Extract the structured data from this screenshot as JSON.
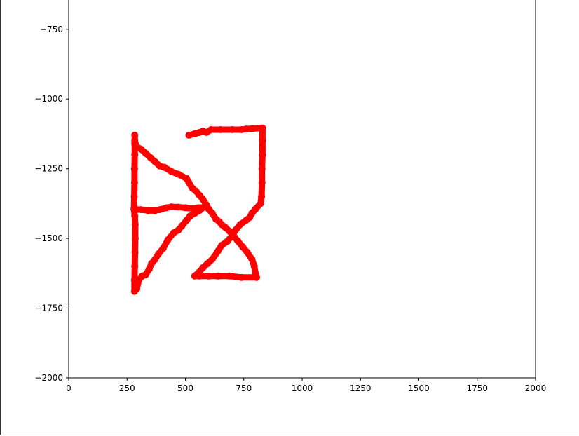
{
  "chart_data": {
    "type": "line",
    "title": "",
    "xlabel": "",
    "ylabel": "",
    "xlim": [
      0,
      2000
    ],
    "ylim": [
      -2000,
      -645
    ],
    "grid": false,
    "x_ticks": [
      0,
      250,
      500,
      750,
      1000,
      1250,
      1500,
      1750,
      2000
    ],
    "x_tick_labels": [
      "0",
      "250",
      "500",
      "750",
      "1000",
      "1250",
      "1500",
      "1750",
      "2000"
    ],
    "y_ticks": [
      -750,
      -1000,
      -1250,
      -1500,
      -1750,
      -2000
    ],
    "y_tick_labels": [
      "−750",
      "−1000",
      "−1250",
      "−1500",
      "−1750",
      "−2000"
    ],
    "series": [
      {
        "color": "#ff0000",
        "marker": "circle",
        "points": [
          [
            515,
            -1130
          ],
          [
            540,
            -1125
          ],
          [
            560,
            -1120
          ],
          [
            575,
            -1115
          ],
          [
            590,
            -1120
          ],
          [
            610,
            -1110
          ],
          [
            650,
            -1110
          ],
          [
            700,
            -1110
          ],
          [
            740,
            -1110
          ],
          [
            760,
            -1108
          ],
          [
            790,
            -1106
          ],
          [
            830,
            -1104
          ],
          [
            830,
            -1150
          ],
          [
            830,
            -1200
          ],
          [
            828,
            -1250
          ],
          [
            828,
            -1300
          ],
          [
            826,
            -1350
          ],
          [
            822,
            -1375
          ],
          [
            800,
            -1395
          ],
          [
            785,
            -1410
          ],
          [
            775,
            -1425
          ],
          [
            760,
            -1435
          ],
          [
            735,
            -1450
          ],
          [
            715,
            -1470
          ],
          [
            700,
            -1490
          ],
          [
            680,
            -1510
          ],
          [
            655,
            -1525
          ],
          [
            640,
            -1545
          ],
          [
            615,
            -1575
          ],
          [
            595,
            -1590
          ],
          [
            575,
            -1605
          ],
          [
            560,
            -1620
          ],
          [
            540,
            -1635
          ],
          [
            560,
            -1635
          ],
          [
            600,
            -1635
          ],
          [
            640,
            -1635
          ],
          [
            690,
            -1635
          ],
          [
            740,
            -1640
          ],
          [
            805,
            -1640
          ],
          [
            800,
            -1625
          ],
          [
            795,
            -1600
          ],
          [
            785,
            -1575
          ],
          [
            765,
            -1550
          ],
          [
            745,
            -1530
          ],
          [
            725,
            -1510
          ],
          [
            710,
            -1495
          ],
          [
            690,
            -1475
          ],
          [
            670,
            -1460
          ],
          [
            655,
            -1450
          ],
          [
            645,
            -1440
          ],
          [
            630,
            -1430
          ],
          [
            615,
            -1410
          ],
          [
            600,
            -1395
          ],
          [
            590,
            -1380
          ],
          [
            575,
            -1360
          ],
          [
            560,
            -1345
          ],
          [
            545,
            -1330
          ],
          [
            530,
            -1320
          ],
          [
            515,
            -1300
          ],
          [
            505,
            -1285
          ],
          [
            470,
            -1270
          ],
          [
            440,
            -1260
          ],
          [
            410,
            -1245
          ],
          [
            390,
            -1240
          ],
          [
            370,
            -1225
          ],
          [
            350,
            -1210
          ],
          [
            330,
            -1195
          ],
          [
            310,
            -1180
          ],
          [
            290,
            -1170
          ],
          [
            283,
            -1150
          ],
          [
            283,
            -1130
          ],
          [
            283,
            -1160
          ],
          [
            283,
            -1200
          ],
          [
            282,
            -1250
          ],
          [
            282,
            -1300
          ],
          [
            281,
            -1350
          ],
          [
            280,
            -1395
          ],
          [
            310,
            -1397
          ],
          [
            340,
            -1400
          ],
          [
            370,
            -1400
          ],
          [
            390,
            -1397
          ],
          [
            420,
            -1390
          ],
          [
            440,
            -1387
          ],
          [
            470,
            -1388
          ],
          [
            500,
            -1390
          ],
          [
            530,
            -1393
          ],
          [
            555,
            -1390
          ],
          [
            580,
            -1388
          ],
          [
            560,
            -1400
          ],
          [
            540,
            -1410
          ],
          [
            520,
            -1420
          ],
          [
            505,
            -1435
          ],
          [
            485,
            -1455
          ],
          [
            470,
            -1470
          ],
          [
            450,
            -1480
          ],
          [
            425,
            -1505
          ],
          [
            405,
            -1535
          ],
          [
            385,
            -1555
          ],
          [
            370,
            -1575
          ],
          [
            355,
            -1590
          ],
          [
            345,
            -1610
          ],
          [
            330,
            -1630
          ],
          [
            315,
            -1635
          ],
          [
            300,
            -1650
          ],
          [
            292,
            -1680
          ],
          [
            282,
            -1690
          ],
          [
            282,
            -1650
          ],
          [
            283,
            -1600
          ],
          [
            284,
            -1550
          ],
          [
            285,
            -1500
          ],
          [
            285,
            -1450
          ],
          [
            283,
            -1420
          ],
          [
            280,
            -1395
          ]
        ]
      }
    ]
  }
}
